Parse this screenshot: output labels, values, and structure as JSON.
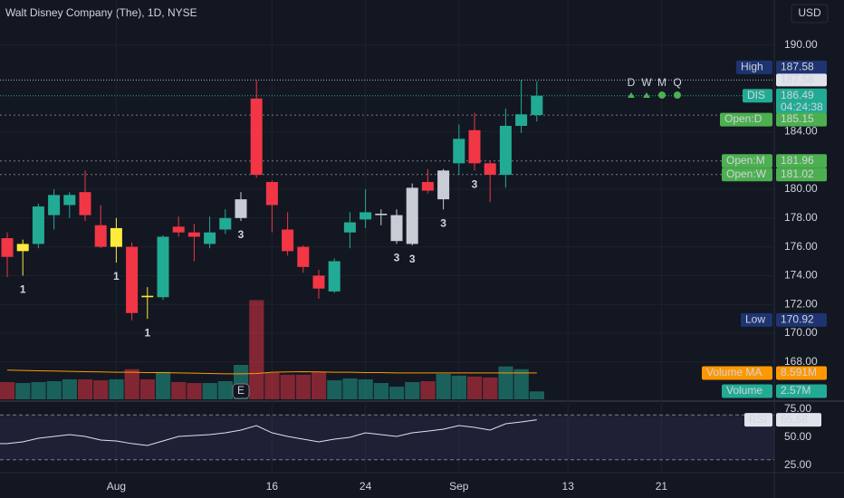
{
  "header": {
    "title": "Walt Disney Company (The), 1D, NYSE",
    "currency": "USD"
  },
  "chart_data": {
    "type": "candlestick",
    "open": [
      176.6,
      175.7,
      176.2,
      178.2,
      178.9,
      179.8,
      177.5,
      176.0,
      176.0,
      172.6,
      172.5,
      177.4,
      177.0,
      176.2,
      177.2,
      178.0,
      186.3,
      180.5,
      177.2,
      176.0,
      174.0,
      172.9,
      177.0,
      177.9,
      178.2,
      176.4,
      176.2,
      180.5,
      179.3,
      181.8,
      184.1,
      181.8,
      181.0,
      184.4,
      185.15
    ],
    "high": [
      177.0,
      176.5,
      179.0,
      180.0,
      179.8,
      181.3,
      178.9,
      178.0,
      176.3,
      173.2,
      176.8,
      178.1,
      177.6,
      178.1,
      178.6,
      179.8,
      187.58,
      180.6,
      178.4,
      176.1,
      174.4,
      175.2,
      178.4,
      180.0,
      178.6,
      178.6,
      180.4,
      181.4,
      181.4,
      184.5,
      185.3,
      182.0,
      185.6,
      187.6,
      187.5
    ],
    "low": [
      173.9,
      174.0,
      175.9,
      177.2,
      178.0,
      177.8,
      175.9,
      174.9,
      170.9,
      171.0,
      172.3,
      176.7,
      175.0,
      175.9,
      176.9,
      177.8,
      180.8,
      177.0,
      175.4,
      174.2,
      172.4,
      172.8,
      175.9,
      177.3,
      177.5,
      176.2,
      176.1,
      179.7,
      178.6,
      181.0,
      181.3,
      179.1,
      180.1,
      183.9,
      184.7
    ],
    "close": [
      175.3,
      176.2,
      178.8,
      179.6,
      179.6,
      178.2,
      176.0,
      177.3,
      171.4,
      172.5,
      176.7,
      177.0,
      176.7,
      177.0,
      178.0,
      179.3,
      181.0,
      178.9,
      175.7,
      174.6,
      173.1,
      175.0,
      177.7,
      178.4,
      178.3,
      178.2,
      180.1,
      179.9,
      181.3,
      183.5,
      181.8,
      181.0,
      184.4,
      185.2,
      186.49
    ],
    "colors": [
      "#f23645",
      "#ffeb3b",
      "#22ab94",
      "#22ab94",
      "#22ab94",
      "#f23645",
      "#f23645",
      "#ffeb3b",
      "#f23645",
      "#ffeb3b",
      "#22ab94",
      "#f23645",
      "#f23645",
      "#22ab94",
      "#22ab94",
      "#c8ccd4",
      "#f23645",
      "#f23645",
      "#f23645",
      "#f23645",
      "#f23645",
      "#22ab94",
      "#22ab94",
      "#22ab94",
      "#c8ccd4",
      "#c8ccd4",
      "#c8ccd4",
      "#f23645",
      "#c8ccd4",
      "#22ab94",
      "#f23645",
      "#f23645",
      "#22ab94",
      "#22ab94",
      "#22ab94"
    ],
    "ylim": [
      165.41,
      193.14
    ],
    "yticks": [
      {
        "value": 168,
        "label": "168.00"
      },
      {
        "value": 170,
        "label": "170.00"
      },
      {
        "value": 172,
        "label": "172.00"
      },
      {
        "value": 174,
        "label": "174.00"
      },
      {
        "value": 176,
        "label": "176.00"
      },
      {
        "value": 178,
        "label": "178.00"
      },
      {
        "value": 180,
        "label": "180.00"
      },
      {
        "value": 184,
        "label": "184.00"
      },
      {
        "value": 190,
        "label": "190.00"
      }
    ],
    "xticks": [
      {
        "value": 7,
        "label": "Aug"
      },
      {
        "value": 17,
        "label": "16"
      },
      {
        "value": 23,
        "label": "24"
      },
      {
        "value": 29,
        "label": "Sep"
      },
      {
        "value": 36,
        "label": "13"
      },
      {
        "value": 42,
        "label": "21"
      }
    ],
    "annotations": [
      {
        "index": 1,
        "text": "1"
      },
      {
        "index": 7,
        "text": "1"
      },
      {
        "index": 9,
        "text": "1"
      },
      {
        "index": 15,
        "text": "3"
      },
      {
        "index": 25,
        "text": "3"
      },
      {
        "index": 26,
        "text": "3"
      },
      {
        "index": 28,
        "text": "3"
      },
      {
        "index": 30,
        "text": "3"
      }
    ],
    "high_label": {
      "name": "High",
      "value": 187.58
    },
    "low_label": {
      "name": "Low",
      "value": 170.92
    },
    "last": {
      "name": "DIS",
      "value": 186.49,
      "countdown": "04:24:38"
    },
    "opens": [
      {
        "name": "Open:D",
        "value": 185.15
      },
      {
        "name": "Open:M",
        "value": 181.96
      },
      {
        "name": "Open:W",
        "value": 181.02
      }
    ],
    "periods": [
      "D",
      "W",
      "M",
      "Q"
    ],
    "earnings": {
      "index": 15,
      "text": "E"
    },
    "volume": {
      "name": "Volume",
      "values": [
        5.6,
        5.3,
        5.6,
        5.9,
        6.5,
        6.5,
        6.2,
        6.5,
        9.8,
        6.5,
        8.9,
        5.6,
        5.3,
        5.3,
        5.9,
        11.2,
        32.3,
        8.6,
        8.0,
        8.0,
        8.9,
        6.2,
        6.8,
        6.5,
        5.3,
        4.1,
        5.6,
        5.9,
        8.3,
        7.7,
        7.4,
        7.1,
        10.7,
        9.8,
        2.57
      ],
      "last_label": "2.57M",
      "ylim": [
        0,
        130
      ]
    },
    "volume_ma": {
      "name": "Volume MA",
      "values": [
        9.5,
        9.4,
        9.3,
        9.2,
        9.1,
        9.0,
        8.9,
        8.8,
        8.8,
        8.7,
        8.7,
        8.6,
        8.5,
        8.4,
        8.3,
        8.3,
        8.4,
        8.8,
        8.9,
        9.0,
        8.9,
        8.8,
        8.8,
        8.7,
        8.7,
        8.6,
        8.6,
        8.6,
        8.6,
        8.6,
        8.6,
        8.6,
        8.6,
        8.6,
        8.591
      ],
      "last_label": "8.591M",
      "color": "#ff9800"
    },
    "rsi": {
      "name": "RSI",
      "values": [
        44.4,
        46.0,
        49.2,
        50.8,
        52.4,
        50.8,
        47.6,
        46.8,
        44.4,
        42.7,
        46.8,
        50.8,
        51.6,
        52.4,
        54.0,
        56.5,
        60.5,
        54.0,
        50.8,
        48.4,
        46.0,
        48.4,
        50.0,
        54.0,
        52.4,
        50.8,
        54.0,
        55.6,
        57.3,
        60.5,
        58.9,
        56.5,
        62.1,
        63.7,
        65.68
      ],
      "ylim": [
        18.5,
        81.5
      ],
      "yticks": [
        {
          "value": 25,
          "label": "25.00"
        },
        {
          "value": 50,
          "label": "50.00"
        },
        {
          "value": 75,
          "label": "75.00"
        }
      ],
      "bands": [
        30,
        70
      ],
      "color": "#e0e3eb"
    }
  }
}
